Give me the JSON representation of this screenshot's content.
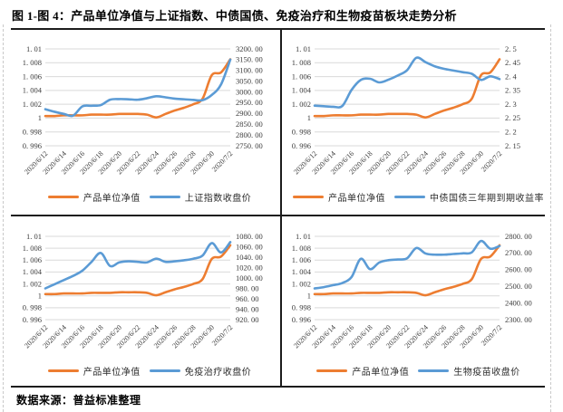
{
  "title": "图 1-图 4：产品单位净值与上证指数、中债国债、免疫治疗和生物疫苗板块走势分析",
  "source_note": "数据来源：普益标准整理",
  "colors": {
    "orange": "#ED7D31",
    "blue": "#5B9BD5",
    "grid": "#D9D9D9",
    "axis_text": "#3b3b3b",
    "border": "#1c1c1c"
  },
  "x_tick_labels": [
    "2020/6/12",
    "2020/6/14",
    "2020/6/16",
    "2020/6/18",
    "2020/6/20",
    "2020/6/22",
    "2020/6/24",
    "2020/6/26",
    "2020/6/28",
    "2020/6/30",
    "2020/7/2"
  ],
  "left_axis": {
    "ticks": [
      "1. 01",
      "1. 008",
      "1. 006",
      "1. 004",
      "1. 002",
      "1",
      "0. 998",
      "0. 996"
    ],
    "min": 0.996,
    "max": 1.01
  },
  "chart_data": [
    {
      "type": "line",
      "position": "top-left",
      "x_start": "2020/6/12",
      "x_end": "2020/7/2",
      "right_axis": {
        "ticks": [
          "3200. 00",
          "3150. 00",
          "3100. 00",
          "3050. 00",
          "3000. 00",
          "2950. 00",
          "2900. 00",
          "2850. 00",
          "2800. 00",
          "2750. 00"
        ],
        "min": 2750,
        "max": 3200
      },
      "series": [
        {
          "name": "产品单位净值",
          "axis": "left",
          "color": "orange",
          "values": [
            1.0003,
            1.0003,
            1.0004,
            1.0004,
            1.0004,
            1.0005,
            1.0005,
            1.0005,
            1.0006,
            1.0006,
            1.0006,
            1.0005,
            1.0001,
            1.0006,
            1.0011,
            1.0015,
            1.002,
            1.0028,
            1.0062,
            1.0066,
            1.0085
          ]
        },
        {
          "name": "上证指数收盘价",
          "axis": "right",
          "color": "blue",
          "values": [
            2920,
            2908,
            2898,
            2890,
            2933,
            2936,
            2939,
            2964,
            2967,
            2966,
            2964,
            2971,
            2980,
            2975,
            2969,
            2966,
            2963,
            2962,
            2986,
            3035,
            3150
          ]
        }
      ]
    },
    {
      "type": "line",
      "position": "top-right",
      "x_start": "2020/6/12",
      "x_end": "2020/7/2",
      "right_axis": {
        "ticks": [
          "2. 5",
          "2. 45",
          "2. 4",
          "2. 35",
          "2. 3",
          "2. 25",
          "2. 2",
          "2. 15"
        ],
        "min": 2.15,
        "max": 2.5
      },
      "series": [
        {
          "name": "产品单位净值",
          "axis": "left",
          "color": "orange",
          "values": [
            1.0003,
            1.0003,
            1.0004,
            1.0004,
            1.0004,
            1.0005,
            1.0005,
            1.0005,
            1.0006,
            1.0006,
            1.0006,
            1.0005,
            1.0001,
            1.0006,
            1.0011,
            1.0015,
            1.002,
            1.0028,
            1.0062,
            1.0066,
            1.0085
          ]
        },
        {
          "name": "中债国债三年期到期收益率",
          "axis": "right",
          "color": "blue",
          "values": [
            2.295,
            2.293,
            2.291,
            2.294,
            2.352,
            2.388,
            2.392,
            2.379,
            2.389,
            2.404,
            2.423,
            2.468,
            2.452,
            2.437,
            2.428,
            2.422,
            2.416,
            2.41,
            2.388,
            2.401,
            2.391
          ]
        }
      ]
    },
    {
      "type": "line",
      "position": "bottom-left",
      "x_start": "2020/6/12",
      "x_end": "2020/7/2",
      "right_axis": {
        "ticks": [
          "1080. 00",
          "1060. 00",
          "1040. 00",
          "1020. 00",
          "1000. 00",
          "980. 00",
          "960. 00",
          "940. 00",
          "920. 00"
        ],
        "min": 920,
        "max": 1080
      },
      "series": [
        {
          "name": "产品单位净值",
          "axis": "left",
          "color": "orange",
          "values": [
            1.0003,
            1.0003,
            1.0004,
            1.0004,
            1.0004,
            1.0005,
            1.0005,
            1.0005,
            1.0006,
            1.0006,
            1.0006,
            1.0005,
            1.0001,
            1.0006,
            1.0011,
            1.0015,
            1.002,
            1.0028,
            1.0062,
            1.0066,
            1.0085
          ]
        },
        {
          "name": "免疫治疗收盘价",
          "axis": "right",
          "color": "blue",
          "values": [
            980,
            988,
            996,
            1004,
            1014,
            1031,
            1048,
            1023,
            1030,
            1032,
            1031,
            1030,
            1037,
            1031,
            1032,
            1034,
            1037,
            1043,
            1067,
            1049,
            1069
          ]
        }
      ]
    },
    {
      "type": "line",
      "position": "bottom-right",
      "x_start": "2020/6/12",
      "x_end": "2020/7/2",
      "right_axis": {
        "ticks": [
          "2800. 00",
          "2700. 00",
          "2600. 00",
          "2500. 00",
          "2400. 00",
          "2300. 00"
        ],
        "min": 2300,
        "max": 2800
      },
      "series": [
        {
          "name": "产品单位净值",
          "axis": "left",
          "color": "orange",
          "values": [
            1.0003,
            1.0003,
            1.0004,
            1.0004,
            1.0004,
            1.0005,
            1.0005,
            1.0005,
            1.0006,
            1.0006,
            1.0006,
            1.0005,
            1.0001,
            1.0006,
            1.0011,
            1.0015,
            1.002,
            1.0028,
            1.0062,
            1.0066,
            1.0085
          ]
        },
        {
          "name": "生物疫苗收盘价",
          "axis": "right",
          "color": "blue",
          "values": [
            2487,
            2495,
            2507,
            2520,
            2556,
            2665,
            2603,
            2643,
            2657,
            2661,
            2668,
            2730,
            2697,
            2690,
            2690,
            2694,
            2698,
            2704,
            2772,
            2726,
            2742
          ]
        }
      ]
    }
  ]
}
